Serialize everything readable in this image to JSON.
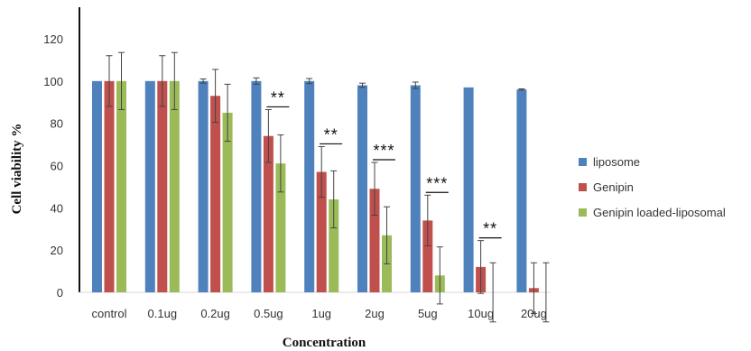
{
  "chart_data": {
    "type": "bar",
    "xlabel": "Concentration",
    "ylabel": "Cell viability %",
    "ylim": [
      0,
      140
    ],
    "yticks": [
      0,
      20,
      40,
      60,
      80,
      100,
      120
    ],
    "categories": [
      "control",
      "0.1ug",
      "0.2ug",
      "0.5ug",
      "1ug",
      "2ug",
      "5ug",
      "10ug",
      "20ug"
    ],
    "grid": false,
    "legend_position": "right",
    "series": [
      {
        "name": "liposome",
        "color": "#4f81bd",
        "values": [
          100,
          100,
          100,
          100,
          100,
          98,
          98,
          97,
          96
        ],
        "errors": [
          0,
          0,
          1,
          1.5,
          1.2,
          1,
          1.5,
          0,
          0.3
        ]
      },
      {
        "name": "Genipin",
        "color": "#c0504d",
        "values": [
          100,
          100,
          93,
          74,
          57,
          49,
          34,
          12,
          2
        ],
        "errors": [
          12,
          12,
          12.5,
          12.5,
          12,
          12.5,
          12,
          12.5,
          12
        ]
      },
      {
        "name": "Genipin loaded-liposomal",
        "color": "#9bbb59",
        "values": [
          100,
          100,
          85,
          61,
          44,
          27,
          8,
          0,
          0
        ],
        "errors": [
          13.5,
          13.5,
          13.5,
          13.5,
          13.5,
          13.5,
          13.5,
          14,
          14
        ]
      }
    ],
    "significance": [
      {
        "category": "0.5ug",
        "label": "**"
      },
      {
        "category": "1ug",
        "label": "**"
      },
      {
        "category": "2ug",
        "label": "***"
      },
      {
        "category": "5ug",
        "label": "***"
      },
      {
        "category": "10ug",
        "label": "**"
      }
    ]
  }
}
